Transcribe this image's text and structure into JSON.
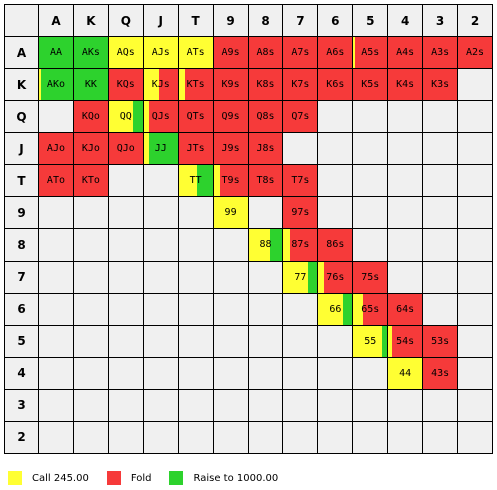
{
  "ranks": [
    "A",
    "K",
    "Q",
    "J",
    "T",
    "9",
    "8",
    "7",
    "6",
    "5",
    "4",
    "3",
    "2"
  ],
  "colors": {
    "call": "#ffff33",
    "fold": "#f63a3a",
    "raise": "#2dd22d",
    "empty": "#f0f0f0"
  },
  "legend": [
    {
      "action": "call",
      "label": "Call 245.00"
    },
    {
      "action": "fold",
      "label": "Fold"
    },
    {
      "action": "raise",
      "label": "Raise to 1000.00"
    }
  ],
  "cells": [
    {
      "hand": "AA",
      "row": 0,
      "col": 0,
      "mix": {
        "raise": 1.0
      }
    },
    {
      "hand": "AKs",
      "row": 0,
      "col": 1,
      "mix": {
        "raise": 1.0
      }
    },
    {
      "hand": "AQs",
      "row": 0,
      "col": 2,
      "mix": {
        "call": 1.0
      }
    },
    {
      "hand": "AJs",
      "row": 0,
      "col": 3,
      "mix": {
        "call": 1.0
      }
    },
    {
      "hand": "ATs",
      "row": 0,
      "col": 4,
      "mix": {
        "call": 1.0
      }
    },
    {
      "hand": "A9s",
      "row": 0,
      "col": 5,
      "mix": {
        "fold": 1.0
      }
    },
    {
      "hand": "A8s",
      "row": 0,
      "col": 6,
      "mix": {
        "fold": 1.0
      }
    },
    {
      "hand": "A7s",
      "row": 0,
      "col": 7,
      "mix": {
        "fold": 1.0
      }
    },
    {
      "hand": "A6s",
      "row": 0,
      "col": 8,
      "mix": {
        "fold": 1.0
      }
    },
    {
      "hand": "A5s",
      "row": 0,
      "col": 9,
      "mix": {
        "call": 0.05,
        "fold": 0.95
      }
    },
    {
      "hand": "A4s",
      "row": 0,
      "col": 10,
      "mix": {
        "fold": 1.0
      }
    },
    {
      "hand": "A3s",
      "row": 0,
      "col": 11,
      "mix": {
        "fold": 1.0
      }
    },
    {
      "hand": "A2s",
      "row": 0,
      "col": 12,
      "mix": {
        "fold": 1.0
      }
    },
    {
      "hand": "AKo",
      "row": 1,
      "col": 0,
      "mix": {
        "call": 0.06,
        "raise": 0.94
      }
    },
    {
      "hand": "KK",
      "row": 1,
      "col": 1,
      "mix": {
        "raise": 1.0
      }
    },
    {
      "hand": "KQs",
      "row": 1,
      "col": 2,
      "mix": {
        "fold": 1.0
      }
    },
    {
      "hand": "KJs",
      "row": 1,
      "col": 3,
      "mix": {
        "call": 0.45,
        "fold": 0.55
      }
    },
    {
      "hand": "KTs",
      "row": 1,
      "col": 4,
      "mix": {
        "call": 0.2,
        "fold": 0.8
      }
    },
    {
      "hand": "K9s",
      "row": 1,
      "col": 5,
      "mix": {
        "fold": 1.0
      }
    },
    {
      "hand": "K8s",
      "row": 1,
      "col": 6,
      "mix": {
        "fold": 1.0
      }
    },
    {
      "hand": "K7s",
      "row": 1,
      "col": 7,
      "mix": {
        "fold": 1.0
      }
    },
    {
      "hand": "K6s",
      "row": 1,
      "col": 8,
      "mix": {
        "fold": 1.0
      }
    },
    {
      "hand": "K5s",
      "row": 1,
      "col": 9,
      "mix": {
        "fold": 1.0
      }
    },
    {
      "hand": "K4s",
      "row": 1,
      "col": 10,
      "mix": {
        "fold": 1.0
      }
    },
    {
      "hand": "K3s",
      "row": 1,
      "col": 11,
      "mix": {
        "fold": 1.0
      }
    },
    {
      "hand": "",
      "row": 1,
      "col": 12,
      "mix": {}
    },
    {
      "hand": "",
      "row": 2,
      "col": 0,
      "mix": {}
    },
    {
      "hand": "KQo",
      "row": 2,
      "col": 1,
      "mix": {
        "fold": 1.0
      }
    },
    {
      "hand": "QQ",
      "row": 2,
      "col": 2,
      "mix": {
        "call": 0.72,
        "raise": 0.28
      }
    },
    {
      "hand": "QJs",
      "row": 2,
      "col": 3,
      "mix": {
        "call": 0.15,
        "fold": 0.85
      }
    },
    {
      "hand": "QTs",
      "row": 2,
      "col": 4,
      "mix": {
        "fold": 1.0
      }
    },
    {
      "hand": "Q9s",
      "row": 2,
      "col": 5,
      "mix": {
        "fold": 1.0
      }
    },
    {
      "hand": "Q8s",
      "row": 2,
      "col": 6,
      "mix": {
        "fold": 1.0
      }
    },
    {
      "hand": "Q7s",
      "row": 2,
      "col": 7,
      "mix": {
        "fold": 1.0
      }
    },
    {
      "hand": "AJo",
      "row": 3,
      "col": 0,
      "mix": {
        "fold": 1.0
      }
    },
    {
      "hand": "KJo",
      "row": 3,
      "col": 1,
      "mix": {
        "fold": 1.0
      }
    },
    {
      "hand": "QJo",
      "row": 3,
      "col": 2,
      "mix": {
        "fold": 1.0
      }
    },
    {
      "hand": "JJ",
      "row": 3,
      "col": 3,
      "mix": {
        "call": 0.15,
        "raise": 0.85
      }
    },
    {
      "hand": "JTs",
      "row": 3,
      "col": 4,
      "mix": {
        "fold": 1.0
      }
    },
    {
      "hand": "J9s",
      "row": 3,
      "col": 5,
      "mix": {
        "fold": 1.0
      }
    },
    {
      "hand": "J8s",
      "row": 3,
      "col": 6,
      "mix": {
        "fold": 1.0
      }
    },
    {
      "hand": "ATo",
      "row": 4,
      "col": 0,
      "mix": {
        "fold": 1.0
      }
    },
    {
      "hand": "KTo",
      "row": 4,
      "col": 1,
      "mix": {
        "fold": 1.0
      }
    },
    {
      "hand": "TT",
      "row": 4,
      "col": 4,
      "mix": {
        "call": 0.55,
        "raise": 0.45
      }
    },
    {
      "hand": "T9s",
      "row": 4,
      "col": 5,
      "mix": {
        "call": 0.18,
        "fold": 0.82
      }
    },
    {
      "hand": "T8s",
      "row": 4,
      "col": 6,
      "mix": {
        "fold": 1.0
      }
    },
    {
      "hand": "T7s",
      "row": 4,
      "col": 7,
      "mix": {
        "fold": 1.0
      }
    },
    {
      "hand": "99",
      "row": 5,
      "col": 5,
      "mix": {
        "call": 1.0
      }
    },
    {
      "hand": "97s",
      "row": 5,
      "col": 7,
      "mix": {
        "fold": 1.0
      }
    },
    {
      "hand": "88",
      "row": 6,
      "col": 6,
      "mix": {
        "call": 0.62,
        "raise": 0.38
      }
    },
    {
      "hand": "87s",
      "row": 6,
      "col": 7,
      "mix": {
        "call": 0.18,
        "fold": 0.82
      }
    },
    {
      "hand": "86s",
      "row": 6,
      "col": 8,
      "mix": {
        "fold": 1.0
      }
    },
    {
      "hand": "77",
      "row": 7,
      "col": 7,
      "mix": {
        "call": 0.72,
        "raise": 0.28
      }
    },
    {
      "hand": "76s",
      "row": 7,
      "col": 8,
      "mix": {
        "call": 0.18,
        "fold": 0.82
      }
    },
    {
      "hand": "75s",
      "row": 7,
      "col": 9,
      "mix": {
        "fold": 1.0
      }
    },
    {
      "hand": "66",
      "row": 8,
      "col": 8,
      "mix": {
        "call": 0.72,
        "raise": 0.28
      }
    },
    {
      "hand": "65s",
      "row": 8,
      "col": 9,
      "mix": {
        "call": 0.3,
        "fold": 0.7
      }
    },
    {
      "hand": "64s",
      "row": 8,
      "col": 10,
      "mix": {
        "fold": 1.0
      }
    },
    {
      "hand": "55",
      "row": 9,
      "col": 9,
      "mix": {
        "call": 0.86,
        "raise": 0.14
      }
    },
    {
      "hand": "54s",
      "row": 9,
      "col": 10,
      "mix": {
        "call": 0.12,
        "fold": 0.88
      }
    },
    {
      "hand": "53s",
      "row": 9,
      "col": 11,
      "mix": {
        "fold": 1.0
      }
    },
    {
      "hand": "44",
      "row": 10,
      "col": 10,
      "mix": {
        "call": 1.0
      }
    },
    {
      "hand": "43s",
      "row": 10,
      "col": 11,
      "mix": {
        "fold": 1.0
      }
    }
  ]
}
